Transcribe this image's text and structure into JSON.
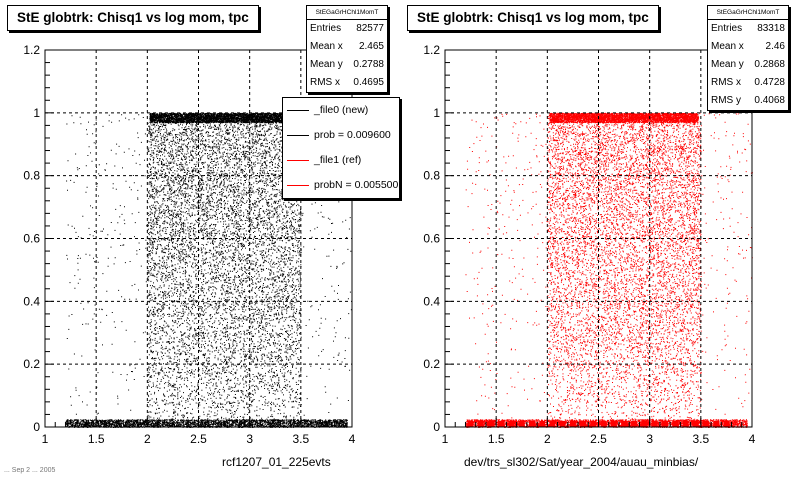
{
  "chart_data": [
    {
      "type": "scatter",
      "title": "StE globtrk: Chisq1 vs log mom, tpc",
      "xlabel": "rcf1207_01_225evts",
      "ylabel": "",
      "xlim": [
        1,
        4
      ],
      "ylim": [
        0,
        1.2
      ],
      "x_ticks": [
        "1",
        "1.5",
        "2",
        "2.5",
        "3",
        "3.5",
        "4"
      ],
      "y_ticks": [
        "0",
        "0.2",
        "0.4",
        "0.6",
        "0.8",
        "1",
        "1.2"
      ],
      "grid": true,
      "marker_color": "#000000",
      "density_profile": {
        "x_core_range": [
          2.0,
          3.5
        ],
        "x_full_range": [
          1.2,
          4.0
        ],
        "bands_y": [
          0.01,
          1.0
        ],
        "notes": "dense horizontal bands at y≈0 and y≈1, uniform fill between 2 and 3.5"
      },
      "stats": {
        "name": "StEGaGrHChl1MomT",
        "rows": [
          {
            "label": "Entries",
            "value": "82577"
          },
          {
            "label": "Mean x",
            "value": "2.465"
          },
          {
            "label": "Mean y",
            "value": "0.2788"
          },
          {
            "label": "RMS x",
            "value": "0.4695"
          }
        ]
      },
      "legend": {
        "placement": "top-right",
        "entries": [
          {
            "label": "_file0 (new)",
            "color": "#000000"
          },
          {
            "label": "prob = 0.009600",
            "color": "#000000"
          },
          {
            "label": "_file1 (ref)",
            "color": "#ff0000"
          },
          {
            "label": "probN = 0.005500",
            "color": "#ff0000"
          }
        ]
      }
    },
    {
      "type": "scatter",
      "title": "StE globtrk: Chisq1 vs log mom, tpc",
      "xlabel": "dev/trs_sl302/Sat/year_2004/auau_minbias/",
      "ylabel": "",
      "xlim": [
        1,
        4
      ],
      "ylim": [
        0,
        1.2
      ],
      "x_ticks": [
        "1",
        "1.5",
        "2",
        "2.5",
        "3",
        "3.5",
        "4"
      ],
      "y_ticks": [
        "0",
        "0.2",
        "0.4",
        "0.6",
        "0.8",
        "1",
        "1.2"
      ],
      "grid": true,
      "marker_color": "#ff0000",
      "density_profile": {
        "x_core_range": [
          2.0,
          3.5
        ],
        "x_full_range": [
          1.2,
          4.0
        ],
        "bands_y": [
          0.01,
          1.0
        ],
        "notes": "dense horizontal bands at y≈0 and y≈1, uniform fill between 2 and 3.5; bottom band drawn with square markers"
      },
      "stats": {
        "name": "StEGaGrHChl1MomT",
        "rows": [
          {
            "label": "Entries",
            "value": "83318"
          },
          {
            "label": "Mean x",
            "value": "2.46"
          },
          {
            "label": "Mean y",
            "value": "0.2868"
          },
          {
            "label": "RMS x",
            "value": "0.4728"
          },
          {
            "label": "RMS y",
            "value": "0.4068"
          }
        ]
      }
    }
  ],
  "footer": {
    "date_text": "... Sep 2 ... 2005"
  }
}
